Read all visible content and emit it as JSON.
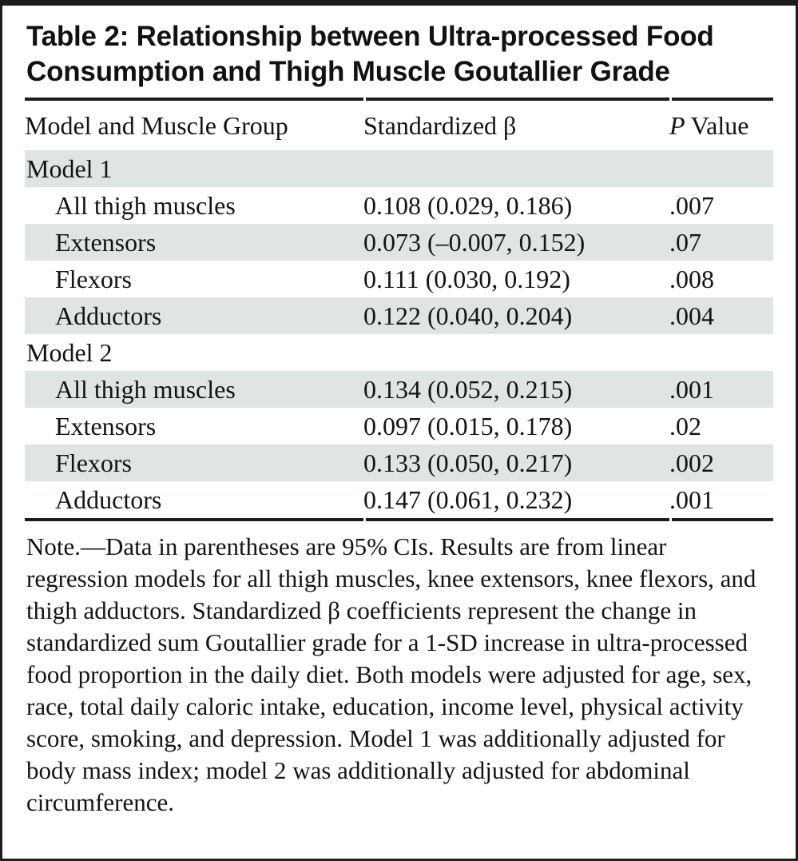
{
  "colors": {
    "frame": "#1c1c1c",
    "row_shade": "#dee5e2",
    "text": "#141414",
    "background": "#ffffff"
  },
  "title": "Table 2: Relationship between Ultra-processed Food Consumption and Thigh Muscle Goutallier Grade",
  "table": {
    "headers": {
      "col1": "Model and Muscle Group",
      "col2": "Standardized β",
      "col3_italic": "P",
      "col3_rest": "Value"
    },
    "rows": [
      {
        "label": "Model 1",
        "beta": "",
        "p": "",
        "indent": false,
        "shaded": true
      },
      {
        "label": "All thigh muscles",
        "beta": "0.108 (0.029, 0.186)",
        "p": ".007",
        "indent": true,
        "shaded": false
      },
      {
        "label": "Extensors",
        "beta": "0.073 (–0.007, 0.152)",
        "p": ".07",
        "indent": true,
        "shaded": true
      },
      {
        "label": "Flexors",
        "beta": "0.111 (0.030, 0.192)",
        "p": ".008",
        "indent": true,
        "shaded": false
      },
      {
        "label": "Adductors",
        "beta": "0.122 (0.040, 0.204)",
        "p": ".004",
        "indent": true,
        "shaded": true
      },
      {
        "label": "Model 2",
        "beta": "",
        "p": "",
        "indent": false,
        "shaded": false
      },
      {
        "label": "All thigh muscles",
        "beta": "0.134 (0.052, 0.215)",
        "p": ".001",
        "indent": true,
        "shaded": true
      },
      {
        "label": "Extensors",
        "beta": "0.097 (0.015, 0.178)",
        "p": ".02",
        "indent": true,
        "shaded": false
      },
      {
        "label": "Flexors",
        "beta": "0.133 (0.050, 0.217)",
        "p": ".002",
        "indent": true,
        "shaded": true
      },
      {
        "label": "Adductors",
        "beta": "0.147 (0.061, 0.232)",
        "p": ".001",
        "indent": true,
        "shaded": false
      }
    ]
  },
  "note": "Note.—Data in parentheses are 95% CIs. Results are from linear regression models for all thigh muscles, knee extensors, knee flexors, and thigh adductors. Standardized β coefficients represent the change in standardized sum Goutallier grade for a 1-SD increase in ultra-processed food proportion in the daily diet. Both models were adjusted for age, sex, race, total daily caloric intake, education, income level, physical activity score, smoking, and depression. Model 1 was additionally adjusted for body mass index; model 2 was additionally adjusted for abdominal circumference."
}
